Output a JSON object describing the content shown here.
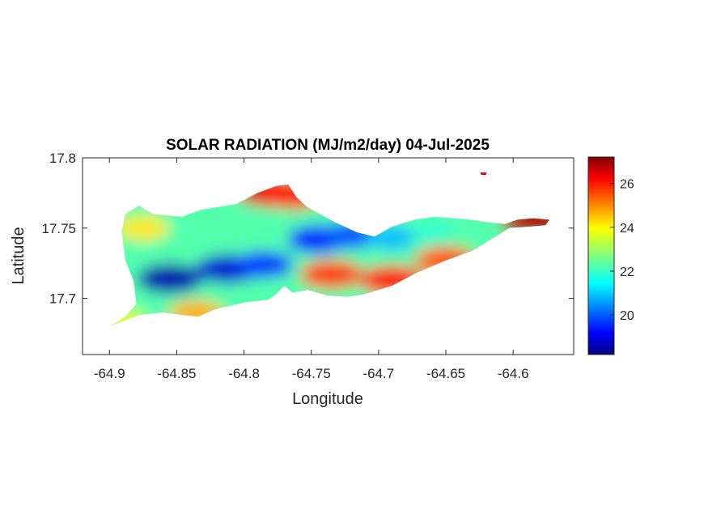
{
  "chart_data": {
    "type": "heatmap",
    "title": "SOLAR RADIATION (MJ/m2/day) 04-Jul-2025",
    "xlabel": "Longitude",
    "ylabel": "Latitude",
    "xlim": [
      -64.92,
      -64.555
    ],
    "ylim": [
      17.66,
      17.8
    ],
    "xticks": [
      -64.9,
      -64.85,
      -64.8,
      -64.75,
      -64.7,
      -64.65,
      -64.6
    ],
    "xtick_labels": [
      "-64.9",
      "-64.85",
      "-64.8",
      "-64.75",
      "-64.7",
      "-64.65",
      "-64.6"
    ],
    "yticks": [
      17.8,
      17.75,
      17.7
    ],
    "ytick_labels": [
      "17.8",
      "17.75",
      "17.7"
    ],
    "colorbar": {
      "colormap": "jet",
      "clim": [
        18.2,
        27.2
      ],
      "ticks": [
        20,
        22,
        24,
        26
      ],
      "tick_labels": [
        "20",
        "22",
        "24",
        "26"
      ]
    },
    "island_outline": [
      [
        -64.9,
        17.68
      ],
      [
        -64.888,
        17.687
      ],
      [
        -64.88,
        17.696
      ],
      [
        -64.882,
        17.712
      ],
      [
        -64.888,
        17.727
      ],
      [
        -64.891,
        17.748
      ],
      [
        -64.888,
        17.76
      ],
      [
        -64.878,
        17.766
      ],
      [
        -64.868,
        17.76
      ],
      [
        -64.846,
        17.758
      ],
      [
        -64.832,
        17.763
      ],
      [
        -64.806,
        17.767
      ],
      [
        -64.79,
        17.775
      ],
      [
        -64.776,
        17.78
      ],
      [
        -64.767,
        17.781
      ],
      [
        -64.761,
        17.772
      ],
      [
        -64.753,
        17.765
      ],
      [
        -64.732,
        17.754
      ],
      [
        -64.716,
        17.747
      ],
      [
        -64.703,
        17.744
      ],
      [
        -64.69,
        17.751
      ],
      [
        -64.673,
        17.756
      ],
      [
        -64.658,
        17.758
      ],
      [
        -64.645,
        17.757
      ],
      [
        -64.632,
        17.756
      ],
      [
        -64.619,
        17.754
      ],
      [
        -64.606,
        17.753
      ],
      [
        -64.597,
        17.756
      ],
      [
        -64.585,
        17.757
      ],
      [
        -64.573,
        17.756
      ],
      [
        -64.576,
        17.752
      ],
      [
        -64.588,
        17.751
      ],
      [
        -64.603,
        17.75
      ],
      [
        -64.613,
        17.744
      ],
      [
        -64.63,
        17.734
      ],
      [
        -64.65,
        17.727
      ],
      [
        -64.672,
        17.718
      ],
      [
        -64.69,
        17.709
      ],
      [
        -64.71,
        17.703
      ],
      [
        -64.723,
        17.701
      ],
      [
        -64.738,
        17.702
      ],
      [
        -64.753,
        17.706
      ],
      [
        -64.764,
        17.704
      ],
      [
        -64.77,
        17.709
      ],
      [
        -64.776,
        17.703
      ],
      [
        -64.782,
        17.699
      ],
      [
        -64.8,
        17.697
      ],
      [
        -64.822,
        17.692
      ],
      [
        -64.834,
        17.687
      ],
      [
        -64.845,
        17.688
      ],
      [
        -64.861,
        17.69
      ],
      [
        -64.878,
        17.688
      ],
      [
        -64.892,
        17.683
      ],
      [
        -64.9,
        17.68
      ]
    ],
    "cay": [
      -64.622,
      17.789
    ],
    "field_features": [
      {
        "lon": -64.855,
        "lat": 17.714,
        "value": 18.6
      },
      {
        "lon": -64.812,
        "lat": 17.721,
        "value": 18.9
      },
      {
        "lon": -64.785,
        "lat": 17.724,
        "value": 19.8
      },
      {
        "lon": -64.745,
        "lat": 17.742,
        "value": 19.4
      },
      {
        "lon": -64.72,
        "lat": 17.745,
        "value": 20.0
      },
      {
        "lon": -64.69,
        "lat": 17.743,
        "value": 21.0
      },
      {
        "lon": -64.66,
        "lat": 17.747,
        "value": 22.0
      },
      {
        "lon": -64.78,
        "lat": 17.776,
        "value": 26.3
      },
      {
        "lon": -64.763,
        "lat": 17.774,
        "value": 25.8
      },
      {
        "lon": -64.735,
        "lat": 17.717,
        "value": 25.5
      },
      {
        "lon": -64.69,
        "lat": 17.713,
        "value": 25.8
      },
      {
        "lon": -64.65,
        "lat": 17.727,
        "value": 25.3
      },
      {
        "lon": -64.583,
        "lat": 17.755,
        "value": 26.8
      },
      {
        "lon": -64.875,
        "lat": 17.75,
        "value": 24.0
      },
      {
        "lon": -64.835,
        "lat": 17.689,
        "value": 24.5
      },
      {
        "lon": -64.89,
        "lat": 17.684,
        "value": 23.5
      }
    ]
  }
}
